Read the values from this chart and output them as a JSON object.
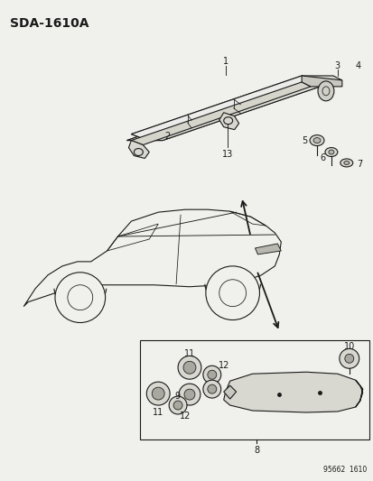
{
  "title": "SDA-1610A",
  "bottom_label": "95662  1610",
  "bg": "#f0f0ec",
  "lc": "#1a1a1a",
  "fig_width": 4.14,
  "fig_height": 5.33,
  "dpi": 100
}
